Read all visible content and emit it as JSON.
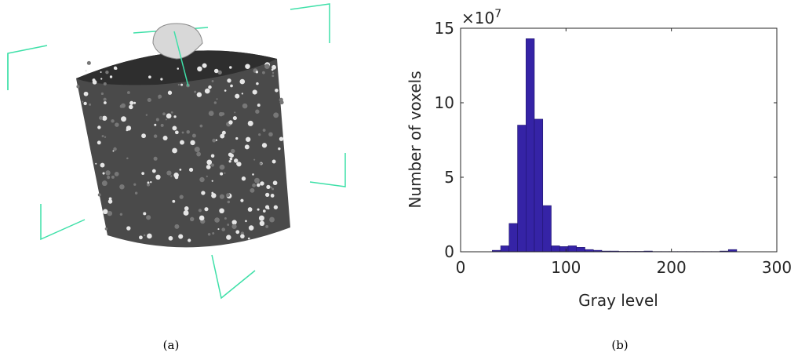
{
  "captions": [
    "(a)",
    "(b)"
  ],
  "chart_data": {
    "type": "histogram",
    "xlabel": "Gray level",
    "ylabel": "Number of voxels",
    "y_multiplier": "×10",
    "y_exponent": "7",
    "bins": [
      30,
      38,
      46,
      54,
      62,
      70,
      78,
      86,
      94,
      102,
      110,
      118,
      126,
      134,
      142,
      150,
      158,
      166,
      174,
      182,
      190,
      198,
      206,
      214,
      222,
      230,
      238,
      246,
      254,
      262
    ],
    "values": [
      0.1,
      0.4,
      1.9,
      8.5,
      14.3,
      8.9,
      3.1,
      0.4,
      0.35,
      0.4,
      0.3,
      0.15,
      0.1,
      0.05,
      0.05,
      0.03,
      0.03,
      0.03,
      0.05,
      0.02,
      0.02,
      0.02,
      0.02,
      0.02,
      0.02,
      0.02,
      0.02,
      0.05,
      0.15
    ],
    "color": "#3523a6",
    "xlim": [
      0,
      300
    ],
    "xticks": [
      0,
      100,
      200,
      300
    ],
    "ylim": [
      0,
      15
    ],
    "yticks": [
      0,
      5,
      10,
      15
    ]
  }
}
